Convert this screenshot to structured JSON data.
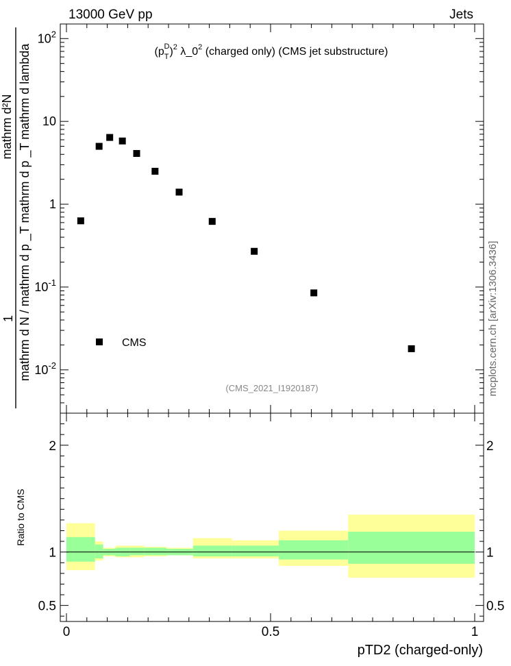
{
  "header": {
    "left": "13000 GeV pp",
    "right": "Jets"
  },
  "side_label": "mcplots.cern.ch [arXiv:1306.3436]",
  "analysis_tag": "(CMS_2021_I1920187)",
  "main_title": {
    "prefix": "(p",
    "sub": "T",
    "sup": "D",
    "rest_a": ")",
    "rest_exp": "2",
    "rest_b": " λ_0",
    "rest_exp2": "2",
    "rest_c": " (charged only) (CMS jet substructure)"
  },
  "y_axis_label": {
    "one": "1",
    "denominator": "mathrm d N / mathrm d p _T mathrm d p _T mathrm d lambda",
    "numerator": "mathrm d²N"
  },
  "ratio_ylabel": "Ratio to CMS",
  "x_axis_label": "pTD2 (charged-only)",
  "legend": {
    "entry": "CMS"
  },
  "colors": {
    "data_marker": "#000000",
    "band_inner": "#99ff99",
    "band_outer": "#ffff99"
  },
  "chart_data": {
    "type": "scatter",
    "x_ticks": [
      "0",
      "0.5",
      "1"
    ],
    "x_range": [
      0,
      1
    ],
    "y_scale": "log",
    "y_range": [
      0.003,
      150
    ],
    "y_ticks": [
      {
        "label": "10",
        "exp": "-2",
        "value": 0.01
      },
      {
        "label": "10",
        "exp": "-1",
        "value": 0.1
      },
      {
        "label": "1",
        "exp": "",
        "value": 1
      },
      {
        "label": "10",
        "exp": "",
        "value": 10
      },
      {
        "label": "10",
        "exp": "2",
        "value": 100
      }
    ],
    "series": [
      {
        "name": "CMS",
        "x": [
          0.035,
          0.08,
          0.106,
          0.137,
          0.172,
          0.217,
          0.276,
          0.357,
          0.46,
          0.606,
          0.845
        ],
        "y": [
          0.63,
          5.0,
          6.4,
          5.8,
          4.1,
          2.5,
          1.4,
          0.62,
          0.27,
          0.085,
          0.018
        ]
      }
    ],
    "ratio": {
      "y_range": [
        0.35,
        2.3
      ],
      "y_ticks": [
        "0.5",
        "1",
        "2"
      ],
      "bins": [
        {
          "lo": 0.0,
          "hi": 0.07,
          "inner": [
            0.91,
            1.14
          ],
          "outer": [
            0.83,
            1.27
          ]
        },
        {
          "lo": 0.07,
          "hi": 0.09,
          "inner": [
            0.94,
            1.07
          ],
          "outer": [
            0.92,
            1.1
          ]
        },
        {
          "lo": 0.09,
          "hi": 0.12,
          "inner": [
            0.97,
            1.03
          ],
          "outer": [
            0.96,
            1.04
          ]
        },
        {
          "lo": 0.12,
          "hi": 0.155,
          "inner": [
            0.96,
            1.04
          ],
          "outer": [
            0.95,
            1.06
          ]
        },
        {
          "lo": 0.155,
          "hi": 0.19,
          "inner": [
            0.97,
            1.04
          ],
          "outer": [
            0.95,
            1.06
          ]
        },
        {
          "lo": 0.19,
          "hi": 0.245,
          "inner": [
            0.97,
            1.04
          ],
          "outer": [
            0.96,
            1.05
          ]
        },
        {
          "lo": 0.245,
          "hi": 0.31,
          "inner": [
            0.97,
            1.03
          ],
          "outer": [
            0.97,
            1.04
          ]
        },
        {
          "lo": 0.31,
          "hi": 0.405,
          "inner": [
            0.96,
            1.06
          ],
          "outer": [
            0.94,
            1.13
          ]
        },
        {
          "lo": 0.405,
          "hi": 0.52,
          "inner": [
            0.96,
            1.06
          ],
          "outer": [
            0.94,
            1.11
          ]
        },
        {
          "lo": 0.52,
          "hi": 0.69,
          "inner": [
            0.93,
            1.11
          ],
          "outer": [
            0.87,
            1.2
          ]
        },
        {
          "lo": 0.69,
          "hi": 1.0,
          "inner": [
            0.89,
            1.19
          ],
          "outer": [
            0.76,
            1.35
          ]
        }
      ]
    }
  }
}
